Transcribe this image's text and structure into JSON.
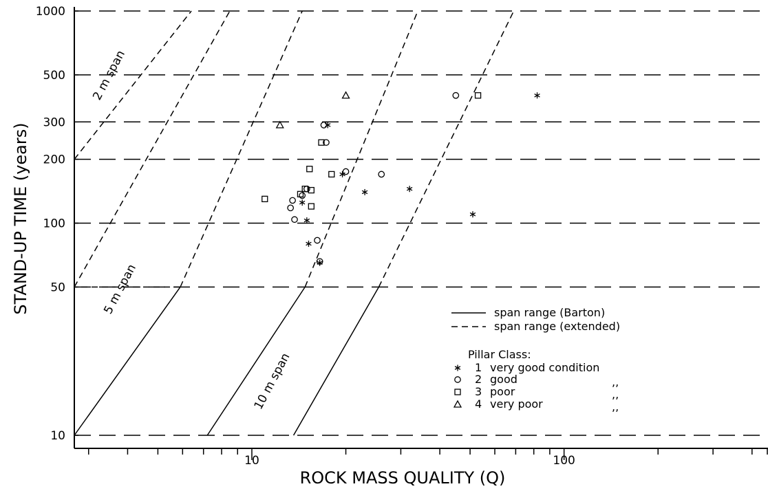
{
  "chart_data": {
    "type": "scatter",
    "xlabel": "ROCK MASS QUALITY (Q)",
    "ylabel": "STAND-UP TIME (years)",
    "x_scale": "log",
    "y_scale": "log",
    "xlim": [
      2.7,
      450
    ],
    "ylim": [
      10,
      1000
    ],
    "x_ticks": [
      {
        "value": 10,
        "label": "10"
      },
      {
        "value": 100,
        "label": "100"
      }
    ],
    "y_ticks": [
      {
        "value": 10,
        "label": "10"
      },
      {
        "value": 50,
        "label": "50"
      },
      {
        "value": 100,
        "label": "100"
      },
      {
        "value": 200,
        "label": "200"
      },
      {
        "value": 300,
        "label": "300"
      },
      {
        "value": 500,
        "label": "500"
      },
      {
        "value": 1000,
        "label": "1000"
      }
    ],
    "grid": "dashed horizontal lines at 10, 50, 100, 200, 300, 500, 1000",
    "span_lines": [
      {
        "label": "2 m span",
        "segments": [
          {
            "style": "dashed",
            "from": [
              2.7,
              200
            ],
            "to": [
              6.4,
              1000
            ]
          }
        ]
      },
      {
        "label": "5 m span",
        "segments": [
          {
            "style": "solid",
            "from": [
              2.7,
              10
            ],
            "to": [
              5.9,
              50
            ]
          },
          {
            "style": "dashed",
            "from": [
              5.9,
              50
            ],
            "to": [
              2.7,
              50
            ]
          },
          {
            "style": "dashed",
            "from": [
              5.9,
              50
            ],
            "to": [
              14.5,
              1000
            ]
          }
        ]
      },
      {
        "label": "",
        "segments": [
          {
            "style": "dashed",
            "from": [
              2.7,
              50
            ],
            "to": [
              8.5,
              1000
            ]
          }
        ]
      },
      {
        "label": "10 m span",
        "segments": [
          {
            "style": "solid",
            "from": [
              7.2,
              10
            ],
            "to": [
              14.8,
              50
            ]
          },
          {
            "style": "dashed",
            "from": [
              14.8,
              50
            ],
            "to": [
              34,
              1000
            ]
          }
        ]
      },
      {
        "label": "",
        "segments": [
          {
            "style": "solid",
            "from": [
              13.6,
              10
            ],
            "to": [
              25.5,
              50
            ]
          },
          {
            "style": "dashed",
            "from": [
              25.5,
              50
            ],
            "to": [
              69,
              1000
            ]
          }
        ]
      }
    ],
    "series": [
      {
        "name": "1 very good condition",
        "marker": "asterisk",
        "points": [
          [
            82,
            400
          ],
          [
            32,
            145
          ],
          [
            51,
            110
          ],
          [
            23,
            140
          ],
          [
            19.5,
            170
          ],
          [
            17.5,
            290
          ],
          [
            15,
            103
          ],
          [
            14.5,
            125
          ],
          [
            15.2,
            80
          ],
          [
            16.5,
            65
          ]
        ]
      },
      {
        "name": "2 good",
        "marker": "circle",
        "points": [
          [
            45,
            400
          ],
          [
            26,
            170
          ],
          [
            20,
            175
          ],
          [
            17.3,
            240
          ],
          [
            17,
            290
          ],
          [
            15,
            145
          ],
          [
            14.5,
            135
          ],
          [
            13.3,
            118
          ],
          [
            13.5,
            128
          ],
          [
            13.7,
            104
          ],
          [
            16.2,
            83
          ],
          [
            16.5,
            66
          ]
        ]
      },
      {
        "name": "3 poor",
        "marker": "square",
        "points": [
          [
            53,
            400
          ],
          [
            16.7,
            240
          ],
          [
            15.3,
            180
          ],
          [
            18,
            170
          ],
          [
            14.8,
            145
          ],
          [
            15.5,
            143
          ],
          [
            14.3,
            137
          ],
          [
            15.5,
            120
          ],
          [
            11,
            130
          ]
        ]
      },
      {
        "name": "4 very poor",
        "marker": "triangle",
        "points": [
          [
            20,
            400
          ],
          [
            12.3,
            290
          ]
        ]
      }
    ],
    "legend_placement": "lower-right",
    "legend": {
      "lines": [
        {
          "style": "solid",
          "label": "span range (Barton)"
        },
        {
          "style": "dashed",
          "label": "span range (extended)"
        }
      ],
      "class_title": "Pillar Class:",
      "classes": [
        {
          "marker": "asterisk",
          "number": "1",
          "label": "very good condition",
          "ditto": ""
        },
        {
          "marker": "circle",
          "number": "2",
          "label": "good",
          "ditto": ",,"
        },
        {
          "marker": "square",
          "number": "3",
          "label": "poor",
          "ditto": ",,"
        },
        {
          "marker": "triangle",
          "number": "4",
          "label": "very poor",
          "ditto": ",,"
        }
      ]
    }
  }
}
